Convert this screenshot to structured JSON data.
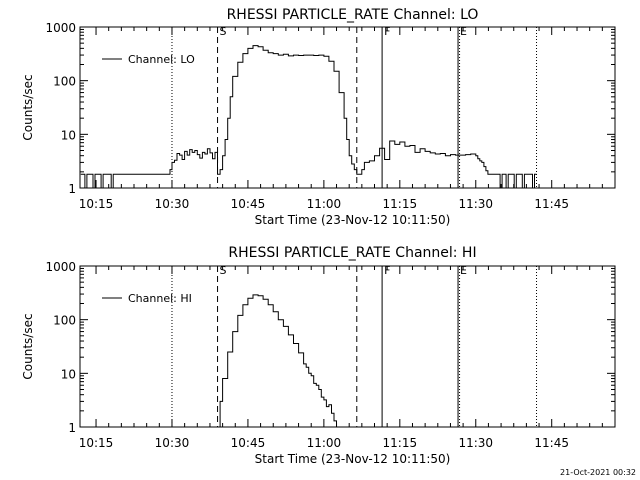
{
  "figure": {
    "footer_timestamp": "21-Oct-2021 00:32",
    "line_color": "#000000",
    "background_color": "#ffffff"
  },
  "chart_data": [
    {
      "type": "line",
      "title": "RHESSI PARTICLE_RATE Channel: LO",
      "xlabel": "Start Time (23-Nov-12 10:11:50)",
      "ylabel": "Counts/sec",
      "yscale": "log",
      "ylim": [
        1,
        1000
      ],
      "xlim_minutes": [
        11.833,
        117.5
      ],
      "x_ticks": [
        {
          "min": 15,
          "label": "10:15"
        },
        {
          "min": 30,
          "label": "10:30"
        },
        {
          "min": 45,
          "label": "10:45"
        },
        {
          "min": 60,
          "label": "11:00"
        },
        {
          "min": 75,
          "label": "11:15"
        },
        {
          "min": 90,
          "label": "11:30"
        },
        {
          "min": 105,
          "label": "11:45"
        }
      ],
      "y_ticks": [
        {
          "value": 1,
          "label": "1"
        },
        {
          "value": 10,
          "label": "10"
        },
        {
          "value": 100,
          "label": "100"
        },
        {
          "value": 1000,
          "label": "1000"
        }
      ],
      "legend": {
        "label": "Channel: LO",
        "placement": "top-left"
      },
      "markers": [
        {
          "min": 30,
          "style": "dotted",
          "label": ""
        },
        {
          "min": 39,
          "style": "dashed",
          "label": "S"
        },
        {
          "min": 66.5,
          "style": "dashed",
          "label": ""
        },
        {
          "min": 71.5,
          "style": "solid",
          "label": "F"
        },
        {
          "min": 86.5,
          "style": "solid",
          "label": "E"
        },
        {
          "min": 86.8,
          "style": "dotted",
          "label": ""
        },
        {
          "min": 102,
          "style": "dotted",
          "label": ""
        }
      ],
      "series": [
        {
          "name": "Channel: LO",
          "x_min": [
            12,
            12.4,
            12.8,
            13.2,
            13.6,
            14,
            14.4,
            14.8,
            15.2,
            15.6,
            16,
            16.4,
            16.8,
            17.2,
            17.6,
            18,
            18.4,
            18.8,
            19.2,
            19.6,
            20,
            20.4,
            20.8,
            21.2,
            21.6,
            22,
            22.4,
            22.8,
            23.2,
            23.6,
            24,
            24.4,
            24.8,
            25.2,
            25.6,
            26,
            26.4,
            26.8,
            27.2,
            27.6,
            28,
            28.4,
            28.8,
            29.2,
            29.6,
            30,
            30.5,
            31,
            31.5,
            32,
            32.5,
            33,
            33.5,
            34,
            34.5,
            35,
            35.5,
            36,
            36.5,
            37,
            37.5,
            38,
            38.5,
            39,
            39.5,
            40,
            40.5,
            41,
            41.5,
            42,
            43,
            44,
            45,
            46,
            47,
            48,
            49,
            50,
            51,
            52,
            53,
            54,
            55,
            56,
            57,
            58,
            59,
            60,
            61,
            62,
            63,
            64,
            64.5,
            65,
            65.5,
            66,
            66.5,
            67,
            67.5,
            68,
            69,
            70,
            71,
            72,
            73,
            74,
            75,
            76,
            77,
            78,
            79,
            80,
            81,
            82,
            83,
            84,
            85,
            86,
            87,
            88,
            89,
            90,
            90.4,
            90.8,
            91.2,
            91.6,
            92,
            92.4,
            92.8,
            93.2,
            93.6,
            94,
            94.4,
            94.8,
            95.2,
            95.6,
            96,
            96.4,
            96.8,
            97.2,
            97.6,
            98,
            98.4,
            98.8,
            99.2,
            99.6,
            100,
            100.4,
            100.8,
            101.2,
            101.6,
            102
          ],
          "y": [
            1.8,
            1.8,
            1,
            1.8,
            1.8,
            1.8,
            1,
            1.8,
            1.8,
            1.8,
            1,
            1.8,
            1.8,
            1.8,
            1.8,
            1,
            1.8,
            1.8,
            1.8,
            1.8,
            1.8,
            1.8,
            1.8,
            1.8,
            1.8,
            1.8,
            1.8,
            1.8,
            1.8,
            1.8,
            1.8,
            1.8,
            1.8,
            1.8,
            1.8,
            1.8,
            1.8,
            1.8,
            1.8,
            1.8,
            1.8,
            1.8,
            1.8,
            1.8,
            2.2,
            3,
            3.3,
            4.4,
            4.1,
            3.4,
            4.8,
            4.1,
            5.2,
            4.6,
            5,
            4.2,
            3.6,
            4.6,
            4.3,
            5.4,
            4.5,
            3.5,
            4.6,
            1.8,
            2.2,
            4,
            8,
            20,
            50,
            120,
            220,
            320,
            400,
            450,
            430,
            370,
            330,
            320,
            300,
            310,
            290,
            300,
            295,
            300,
            300,
            295,
            300,
            285,
            230,
            150,
            60,
            20,
            8,
            4,
            2.8,
            2.2,
            1.8,
            1.8,
            2.2,
            3,
            3.2,
            4,
            5.5,
            3.4,
            7.5,
            6.5,
            7.2,
            6,
            6.2,
            4.6,
            5.4,
            4.8,
            4.5,
            4.3,
            4.4,
            4,
            4.2,
            4.1,
            4.1,
            4.2,
            4.3,
            4,
            3.5,
            3.2,
            3,
            2.5,
            2.1,
            1.8,
            1.8,
            1.8,
            1.8,
            1.8,
            1.8,
            1,
            1.8,
            1.8,
            1,
            1.8,
            1.8,
            1.8,
            1,
            1.8,
            1.8,
            1.8,
            1,
            1.8,
            1.8,
            1.8,
            1.8,
            1,
            1.8,
            1.8,
            1.8,
            1.8
          ]
        }
      ]
    },
    {
      "type": "line",
      "title": "RHESSI PARTICLE_RATE Channel: HI",
      "xlabel": "Start Time (23-Nov-12 10:11:50)",
      "ylabel": "Counts/sec",
      "yscale": "log",
      "ylim": [
        1,
        1000
      ],
      "xlim_minutes": [
        11.833,
        117.5
      ],
      "x_ticks": [
        {
          "min": 15,
          "label": "10:15"
        },
        {
          "min": 30,
          "label": "10:30"
        },
        {
          "min": 45,
          "label": "10:45"
        },
        {
          "min": 60,
          "label": "11:00"
        },
        {
          "min": 75,
          "label": "11:15"
        },
        {
          "min": 90,
          "label": "11:30"
        },
        {
          "min": 105,
          "label": "11:45"
        }
      ],
      "y_ticks": [
        {
          "value": 1,
          "label": "1"
        },
        {
          "value": 10,
          "label": "10"
        },
        {
          "value": 100,
          "label": "100"
        },
        {
          "value": 1000,
          "label": "1000"
        }
      ],
      "legend": {
        "label": "Channel: HI",
        "placement": "top-left"
      },
      "markers": [
        {
          "min": 30,
          "style": "dotted",
          "label": ""
        },
        {
          "min": 39,
          "style": "dashed",
          "label": "S"
        },
        {
          "min": 66.5,
          "style": "dashed",
          "label": ""
        },
        {
          "min": 71.5,
          "style": "solid",
          "label": "F"
        },
        {
          "min": 86.5,
          "style": "solid",
          "label": "E"
        },
        {
          "min": 86.8,
          "style": "dotted",
          "label": ""
        },
        {
          "min": 102,
          "style": "dotted",
          "label": ""
        }
      ],
      "series": [
        {
          "name": "Channel: HI",
          "x_min": [
            39,
            39.5,
            40,
            41,
            42,
            43,
            44,
            45,
            46,
            47,
            48,
            49,
            50,
            51,
            52,
            53,
            54,
            55,
            56,
            56.5,
            57,
            57.5,
            58,
            58.5,
            59,
            59.5,
            60,
            60.5,
            61,
            61.5,
            62,
            62.5
          ],
          "y": [
            1,
            3,
            8,
            25,
            60,
            120,
            190,
            250,
            290,
            280,
            240,
            190,
            140,
            100,
            75,
            52,
            36,
            24,
            15,
            13,
            10,
            9,
            6.5,
            6,
            5,
            3.6,
            3.2,
            2.4,
            2.6,
            1.8,
            1.3,
            1
          ]
        }
      ]
    }
  ]
}
